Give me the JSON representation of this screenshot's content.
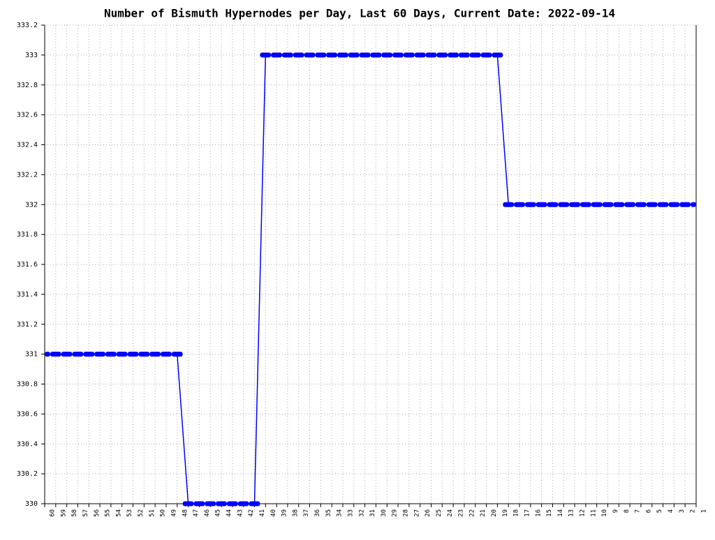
{
  "chart_data": {
    "type": "line",
    "title": "Number of Bismuth Hypernodes per Day, Last 60 Days, Current Date: 2022-09-14",
    "categories": [
      "60",
      "59",
      "58",
      "57",
      "56",
      "55",
      "54",
      "53",
      "52",
      "51",
      "50",
      "49",
      "48",
      "47",
      "46",
      "45",
      "44",
      "43",
      "42",
      "41",
      "40",
      "39",
      "38",
      "37",
      "36",
      "35",
      "34",
      "33",
      "32",
      "31",
      "30",
      "29",
      "28",
      "27",
      "26",
      "25",
      "24",
      "23",
      "22",
      "21",
      "20",
      "19",
      "18",
      "17",
      "16",
      "15",
      "14",
      "13",
      "12",
      "11",
      "10",
      "9",
      "8",
      "7",
      "6",
      "5",
      "4",
      "3",
      "2",
      "1"
    ],
    "series": [
      {
        "color": "#0000ff",
        "values": [
          331,
          331,
          331,
          331,
          331,
          331,
          331,
          331,
          331,
          331,
          331,
          331,
          331,
          330,
          330,
          330,
          330,
          330,
          330,
          330,
          333,
          333,
          333,
          333,
          333,
          333,
          333,
          333,
          333,
          333,
          333,
          333,
          333,
          333,
          333,
          333,
          333,
          333,
          333,
          333,
          333,
          333,
          332,
          332,
          332,
          332,
          332,
          332,
          332,
          332,
          332,
          332,
          332,
          332,
          332,
          332,
          332,
          332,
          332,
          332
        ]
      }
    ],
    "ylim": [
      330,
      333.2
    ],
    "yticks": [
      330,
      330.2,
      330.4,
      330.6,
      330.8,
      331,
      331.2,
      331.4,
      331.6,
      331.8,
      332,
      332.2,
      332.4,
      332.6,
      332.8,
      333,
      333.2
    ],
    "grid": true
  }
}
